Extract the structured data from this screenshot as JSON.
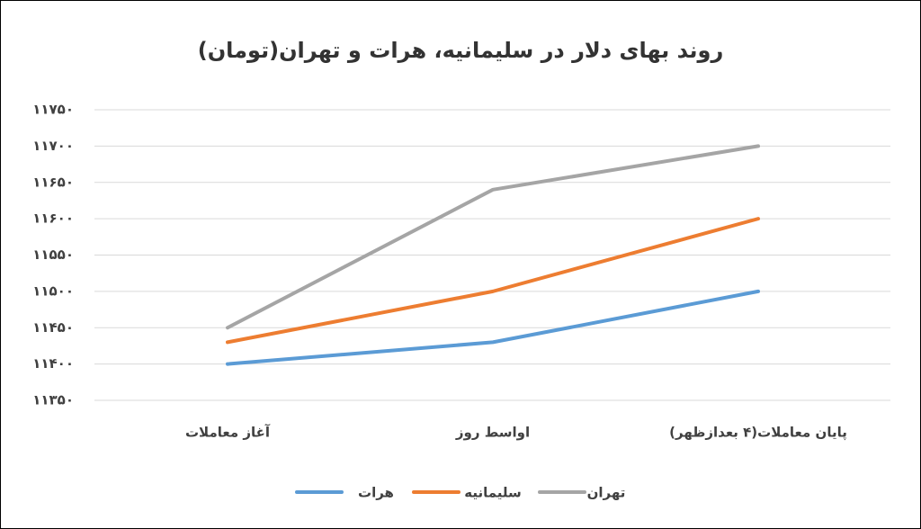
{
  "chart_data": {
    "type": "line",
    "title": "روند بهای دلار در سلیمانیه، هرات و تهران(تومان)",
    "categories": [
      "آغاز معاملات",
      "اواسط روز",
      "پایان معاملات(۴ بعدازظهر)"
    ],
    "series": [
      {
        "name": "هرات",
        "color": "#5b9bd5",
        "values": [
          11400,
          11430,
          11500
        ]
      },
      {
        "name": "سلیمانیه",
        "color": "#ed7d31",
        "values": [
          11430,
          11500,
          11600
        ]
      },
      {
        "name": "تهران",
        "color": "#a5a5a5",
        "values": [
          11450,
          11640,
          11700
        ]
      }
    ],
    "ylim": [
      11350,
      11750
    ],
    "yticks": [
      {
        "value": 11350,
        "label": "۱۱۳۵۰"
      },
      {
        "value": 11400,
        "label": "۱۱۴۰۰"
      },
      {
        "value": 11450,
        "label": "۱۱۴۵۰"
      },
      {
        "value": 11500,
        "label": "۱۱۵۰۰"
      },
      {
        "value": 11550,
        "label": "۱۱۵۵۰"
      },
      {
        "value": 11600,
        "label": "۱۱۶۰۰"
      },
      {
        "value": 11650,
        "label": "۱۱۶۵۰"
      },
      {
        "value": 11700,
        "label": "۱۱۷۰۰"
      },
      {
        "value": 11750,
        "label": "۱۱۷۵۰"
      }
    ],
    "grid": true
  }
}
